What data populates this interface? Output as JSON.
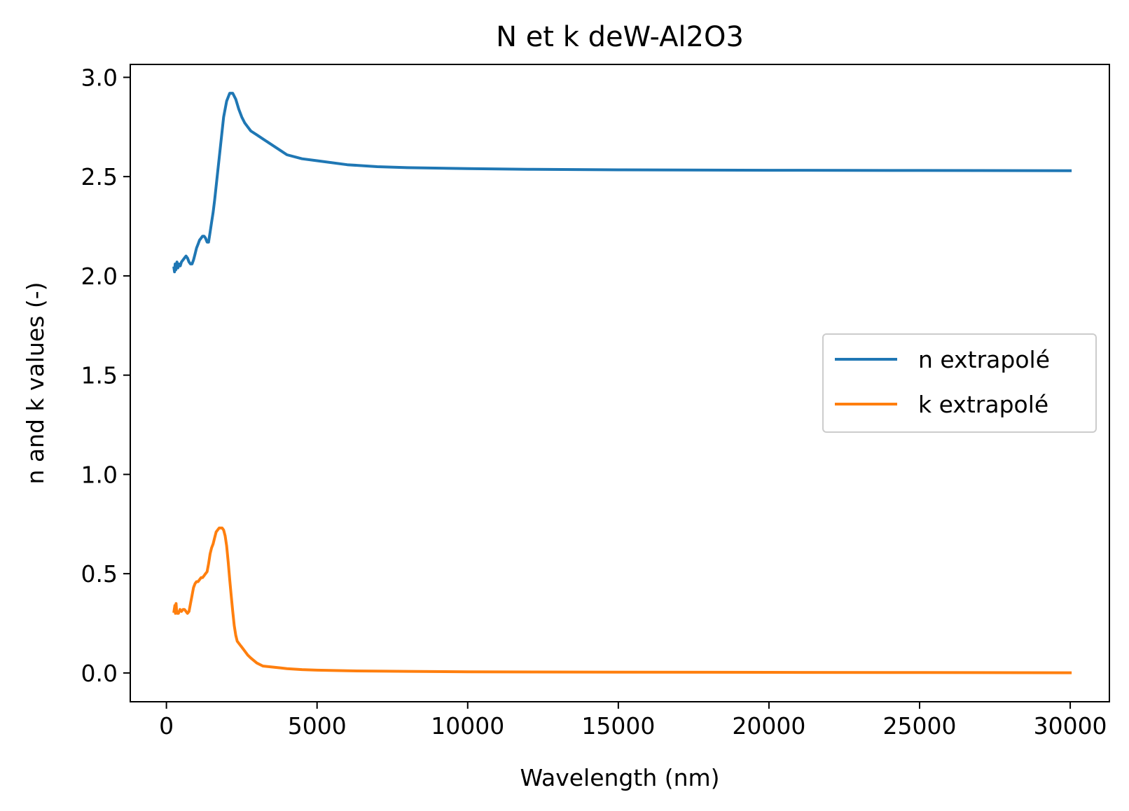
{
  "chart_data": {
    "type": "line",
    "title": "N et k deW-Al2O3",
    "xlabel": "Wavelength (nm)",
    "ylabel": "n and k values (-)",
    "xlim": [
      -1200,
      31300
    ],
    "ylim": [
      -0.145,
      3.065
    ],
    "xticks": [
      0,
      5000,
      10000,
      15000,
      20000,
      25000,
      30000
    ],
    "xtick_labels": [
      "0",
      "5000",
      "10000",
      "15000",
      "20000",
      "25000",
      "30000"
    ],
    "yticks": [
      0.0,
      0.5,
      1.0,
      1.5,
      2.0,
      2.5,
      3.0
    ],
    "ytick_labels": [
      "0.0",
      "0.5",
      "1.0",
      "1.5",
      "2.0",
      "2.5",
      "3.0"
    ],
    "grid": false,
    "legend_position": "center-right",
    "series": [
      {
        "name": "n extrapolé",
        "color": "#1f77b4",
        "x": [
          250,
          270,
          290,
          310,
          330,
          350,
          380,
          420,
          460,
          500,
          550,
          600,
          650,
          700,
          750,
          800,
          850,
          900,
          950,
          1000,
          1050,
          1100,
          1150,
          1200,
          1250,
          1300,
          1350,
          1400,
          1450,
          1500,
          1550,
          1600,
          1700,
          1800,
          1900,
          2000,
          2100,
          2200,
          2300,
          2400,
          2500,
          2600,
          2700,
          2800,
          3000,
          3200,
          3500,
          3800,
          4000,
          4500,
          5000,
          6000,
          7000,
          8000,
          10000,
          12000,
          15000,
          20000,
          25000,
          30000
        ],
        "y": [
          2.04,
          2.02,
          2.06,
          2.03,
          2.05,
          2.07,
          2.04,
          2.06,
          2.05,
          2.07,
          2.08,
          2.09,
          2.1,
          2.09,
          2.07,
          2.06,
          2.06,
          2.08,
          2.11,
          2.14,
          2.16,
          2.18,
          2.19,
          2.2,
          2.2,
          2.19,
          2.17,
          2.17,
          2.22,
          2.27,
          2.32,
          2.38,
          2.52,
          2.66,
          2.8,
          2.88,
          2.92,
          2.92,
          2.89,
          2.84,
          2.8,
          2.77,
          2.75,
          2.73,
          2.71,
          2.69,
          2.66,
          2.63,
          2.61,
          2.59,
          2.58,
          2.56,
          2.55,
          2.545,
          2.54,
          2.537,
          2.534,
          2.532,
          2.531,
          2.53
        ]
      },
      {
        "name": "k extrapolé",
        "color": "#ff7f0e",
        "x": [
          250,
          280,
          300,
          320,
          340,
          360,
          400,
          450,
          500,
          550,
          600,
          650,
          700,
          750,
          800,
          850,
          900,
          950,
          1000,
          1050,
          1100,
          1150,
          1200,
          1250,
          1300,
          1350,
          1400,
          1450,
          1500,
          1550,
          1600,
          1650,
          1700,
          1750,
          1800,
          1850,
          1900,
          1950,
          2000,
          2050,
          2100,
          2150,
          2200,
          2250,
          2300,
          2350,
          2400,
          2450,
          2500,
          2600,
          2700,
          2800,
          3000,
          3200,
          3500,
          3800,
          4000,
          4500,
          5000,
          6000,
          7000,
          8000,
          10000,
          15000,
          20000,
          25000,
          30000
        ],
        "y": [
          0.31,
          0.34,
          0.3,
          0.35,
          0.31,
          0.3,
          0.3,
          0.32,
          0.31,
          0.32,
          0.32,
          0.31,
          0.3,
          0.31,
          0.35,
          0.39,
          0.43,
          0.45,
          0.46,
          0.46,
          0.47,
          0.48,
          0.48,
          0.49,
          0.5,
          0.51,
          0.55,
          0.6,
          0.63,
          0.65,
          0.68,
          0.71,
          0.72,
          0.73,
          0.73,
          0.73,
          0.72,
          0.69,
          0.64,
          0.56,
          0.47,
          0.39,
          0.31,
          0.24,
          0.19,
          0.16,
          0.15,
          0.14,
          0.13,
          0.11,
          0.09,
          0.075,
          0.05,
          0.035,
          0.03,
          0.025,
          0.022,
          0.017,
          0.014,
          0.011,
          0.009,
          0.008,
          0.006,
          0.004,
          0.003,
          0.002,
          0.001
        ]
      }
    ]
  }
}
